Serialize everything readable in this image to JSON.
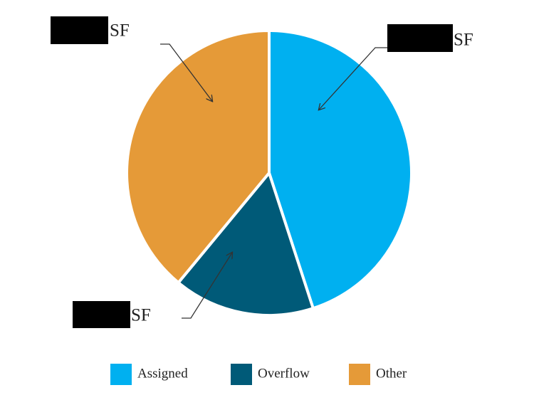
{
  "chart_data": {
    "type": "pie",
    "categories": [
      "Assigned",
      "Overflow",
      "Other"
    ],
    "values": [
      45,
      16,
      39
    ],
    "colors": [
      "#00b0f0",
      "#005a78",
      "#e59a38"
    ],
    "annotations": [
      "SF",
      "SF",
      "SF"
    ],
    "legend": "bottom"
  }
}
